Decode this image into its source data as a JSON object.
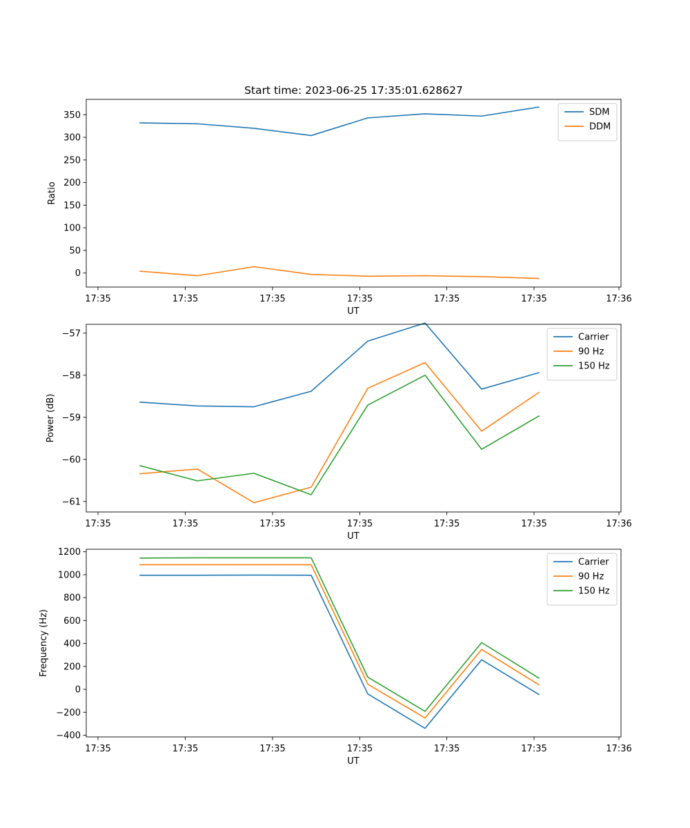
{
  "chart_data": [
    {
      "type": "line",
      "title": "Start time: 2023-06-25 17:35:01.628627",
      "xlabel": "UT",
      "ylabel": "Ratio",
      "x_tick_labels": [
        "17:35",
        "17:35",
        "17:35",
        "17:35",
        "17:35",
        "17:35",
        "17:36"
      ],
      "ylim": [
        -31,
        384
      ],
      "y_ticks": [
        0,
        50,
        100,
        150,
        200,
        250,
        300,
        350
      ],
      "y_tick_labels": [
        "0",
        "50",
        "100",
        "150",
        "200",
        "250",
        "300",
        "350"
      ],
      "legend_position": "top-right",
      "series": [
        {
          "name": "SDM",
          "color": "#1f77b4",
          "values": [
            332,
            330,
            320,
            304,
            343,
            352,
            347,
            367
          ]
        },
        {
          "name": "DDM",
          "color": "#ff7f0e",
          "values": [
            4,
            -6,
            14,
            -3,
            -7,
            -6,
            -8,
            -12
          ]
        }
      ]
    },
    {
      "type": "line",
      "title": "",
      "xlabel": "UT",
      "ylabel": "Power (dB)",
      "x_tick_labels": [
        "17:35",
        "17:35",
        "17:35",
        "17:35",
        "17:35",
        "17:35",
        "17:36"
      ],
      "ylim": [
        -61.25,
        -56.79
      ],
      "y_ticks": [
        -61,
        -60,
        -59,
        -58,
        -57
      ],
      "y_tick_labels": [
        "−61",
        "−60",
        "−59",
        "−58",
        "−57"
      ],
      "legend_position": "top-right",
      "series": [
        {
          "name": "Carrier",
          "color": "#1f77b4",
          "values": [
            -58.64,
            -58.73,
            -58.75,
            -58.38,
            -57.19,
            -56.76,
            -58.33,
            -57.94
          ]
        },
        {
          "name": "90 Hz",
          "color": "#ff7f0e",
          "values": [
            -60.34,
            -60.23,
            -61.03,
            -60.66,
            -58.31,
            -57.7,
            -59.33,
            -58.41
          ]
        },
        {
          "name": "150 Hz",
          "color": "#2ca02c",
          "values": [
            -60.15,
            -60.51,
            -60.33,
            -60.84,
            -58.71,
            -58.0,
            -59.76,
            -58.97
          ]
        }
      ]
    },
    {
      "type": "line",
      "title": "",
      "xlabel": "UT",
      "ylabel": "Frequency (Hz)",
      "x_tick_labels": [
        "17:35",
        "17:35",
        "17:35",
        "17:35",
        "17:35",
        "17:35",
        "17:36"
      ],
      "ylim": [
        -415,
        1222
      ],
      "y_ticks": [
        -400,
        -200,
        0,
        200,
        400,
        600,
        800,
        1000,
        1200
      ],
      "y_tick_labels": [
        "−400",
        "−200",
        "0",
        "200",
        "400",
        "600",
        "800",
        "1000",
        "1200"
      ],
      "legend_position": "top-right",
      "series": [
        {
          "name": "Carrier",
          "color": "#1f77b4",
          "values": [
            995,
            995,
            997,
            995,
            -40,
            -340,
            258,
            -45
          ]
        },
        {
          "name": "90 Hz",
          "color": "#ff7f0e",
          "values": [
            1087,
            1087,
            1087,
            1087,
            45,
            -250,
            348,
            40
          ]
        },
        {
          "name": "150 Hz",
          "color": "#2ca02c",
          "values": [
            1145,
            1147,
            1147,
            1147,
            107,
            -192,
            408,
            98
          ]
        }
      ]
    }
  ]
}
